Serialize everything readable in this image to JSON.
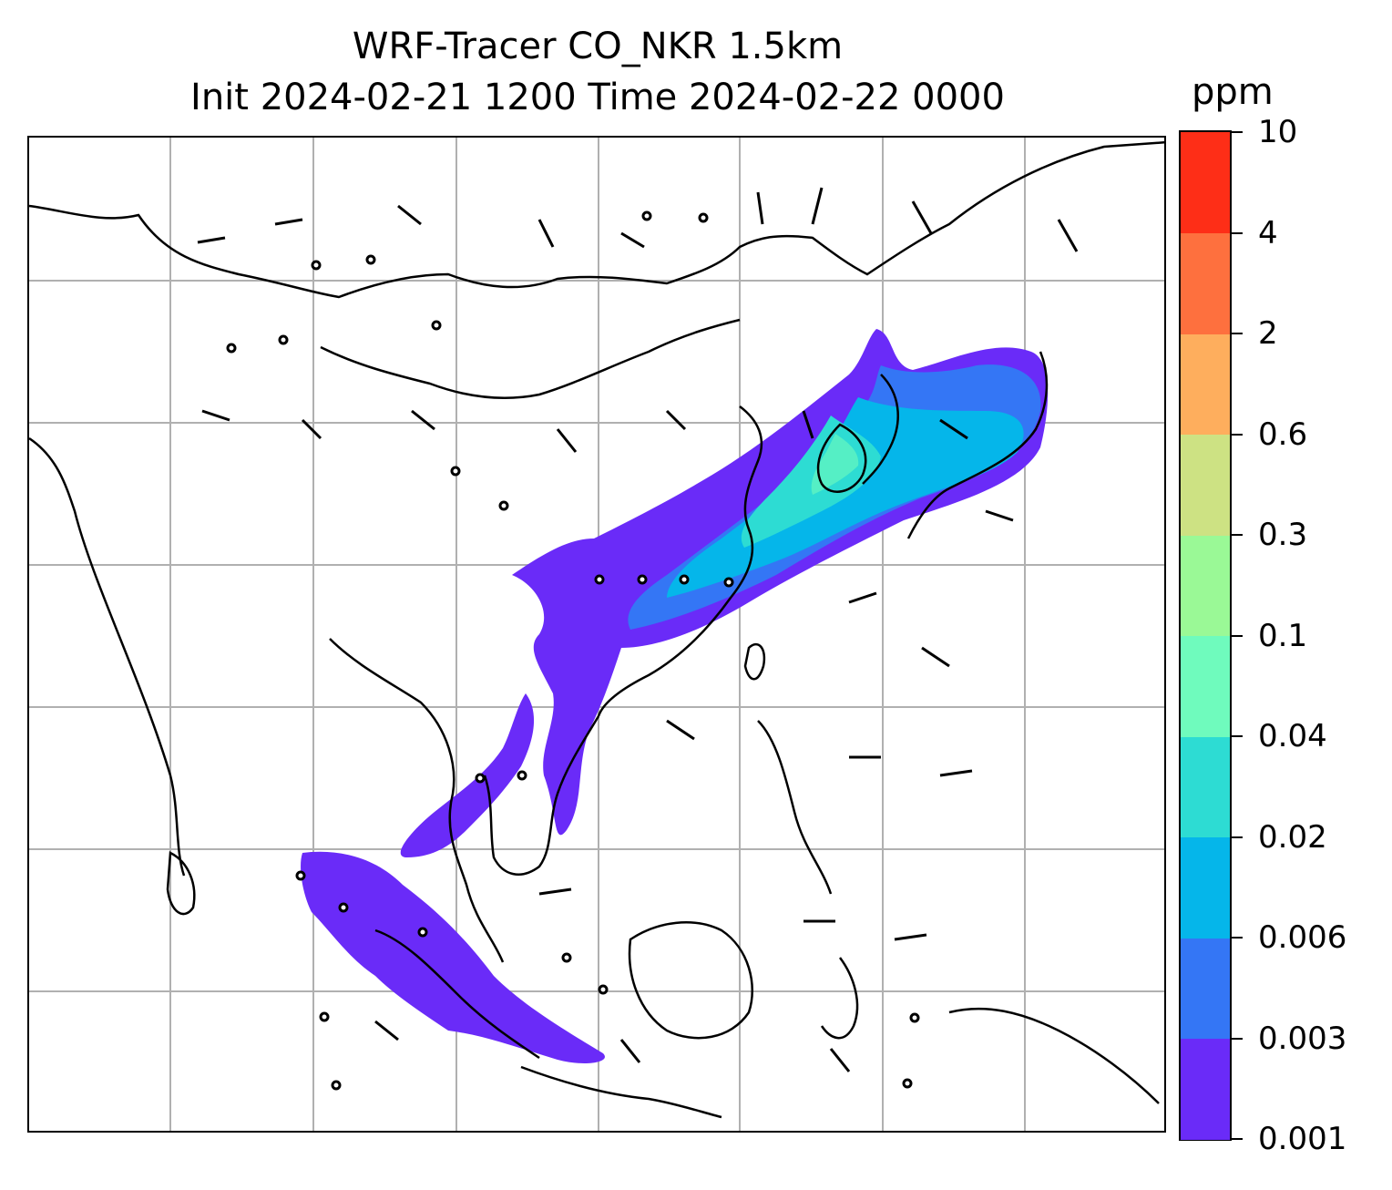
{
  "title_line1": "WRF-Tracer CO_NKR 1.5km",
  "title_line2": "Init 2024-02-21 1200 Time 2024-02-22 0000",
  "colorbar": {
    "unit": "ppm",
    "ticks": [
      "0.001",
      "0.003",
      "0.006",
      "0.02",
      "0.04",
      "0.1",
      "0.3",
      "0.6",
      "2",
      "4",
      "10"
    ],
    "colors": [
      "#6a2bf8",
      "#3476f5",
      "#05b6ea",
      "#2ddcd3",
      "#6ffbbd",
      "#9af996",
      "#cde283",
      "#feae5d",
      "#fe703e",
      "#fe2e17"
    ]
  },
  "map": {
    "gridlines": true,
    "gridline_color": "#b0b0b0",
    "coastline_color": "#000000",
    "plume_levels": [
      "0.001",
      "0.003",
      "0.006",
      "0.02",
      "0.04"
    ]
  }
}
